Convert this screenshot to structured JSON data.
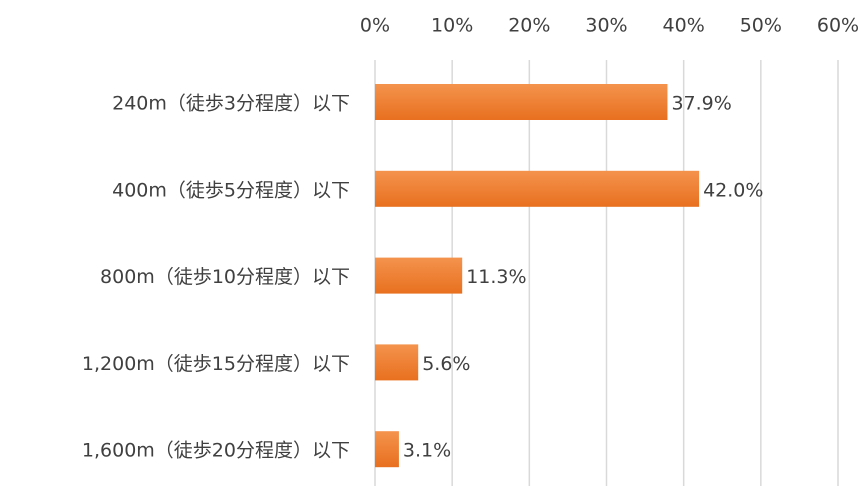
{
  "chart_data": {
    "type": "barh",
    "categories": [
      "240m（徒歩3分程度）以下",
      "400m（徒歩5分程度）以下",
      "800m（徒歩10分程度）以下",
      "1,200m（徒歩15分程度）以下",
      "1,600m（徒歩20分程度）以下"
    ],
    "values": [
      37.9,
      42.0,
      11.3,
      5.6,
      3.1
    ],
    "value_labels": [
      "37.9%",
      "42.0%",
      "11.3%",
      "5.6%",
      "3.1%"
    ],
    "color": "#ed7d31",
    "xlim": [
      0,
      60
    ],
    "xticks": [
      {
        "value": 0,
        "label": "0%"
      },
      {
        "value": 10,
        "label": "10%"
      },
      {
        "value": 20,
        "label": "20%"
      },
      {
        "value": 30,
        "label": "30%"
      },
      {
        "value": 40,
        "label": "40%"
      },
      {
        "value": 50,
        "label": "50%"
      },
      {
        "value": 60,
        "label": "60%"
      }
    ],
    "grid": true
  }
}
